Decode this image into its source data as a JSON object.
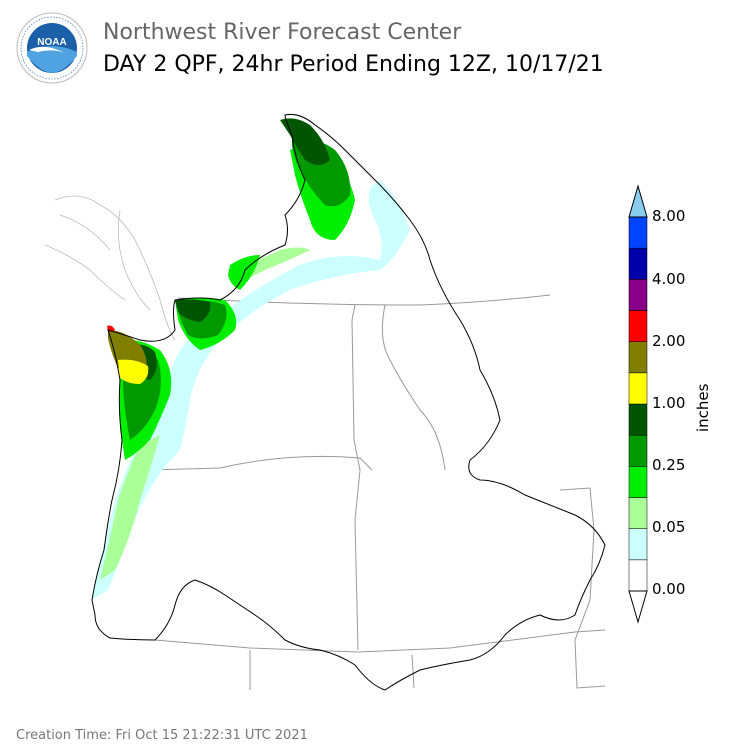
{
  "header": {
    "agency_logo_text": "NOAA",
    "title_line1": "Northwest River Forecast Center",
    "title_line2": "DAY 2 QPF, 24hr Period Ending 12Z, 10/17/21"
  },
  "legend": {
    "units": "inches",
    "labels": [
      "0.00",
      "0.05",
      "0.25",
      "1.00",
      "2.00",
      "4.00",
      "8.00"
    ],
    "colors": [
      "#ffffff",
      "#ccffff",
      "#aaff99",
      "#00ee00",
      "#009900",
      "#005500",
      "#ffff00",
      "#807f00",
      "#ff0000",
      "#880088",
      "#0000aa",
      "#0044ff",
      "#88ccee"
    ]
  },
  "footer": {
    "creation_time": "Creation Time: Fri Oct 15 21:22:31 UTC 2021"
  },
  "colors": {
    "title_gray": "#666666",
    "boundary": "#999999",
    "basin_outline": "#000000"
  }
}
